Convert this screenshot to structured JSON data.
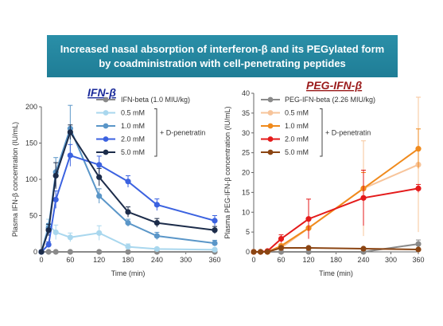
{
  "banner": {
    "line1": "Increased nasal absorption of interferon-β and its PEGylated form",
    "line2": "by coadministration with cell-penetrating peptides"
  },
  "chart_data": [
    {
      "type": "line",
      "title": "IFN-β",
      "title_color": "#1a2a9a",
      "xlabel": "Time (min)",
      "ylabel": "Plasma IFN-β concentration (IU/mL)",
      "xlim": [
        0,
        360
      ],
      "ylim": [
        0,
        200
      ],
      "xticks": [
        0,
        60,
        120,
        180,
        240,
        300,
        360
      ],
      "yticks": [
        0,
        50,
        100,
        150,
        200
      ],
      "x": [
        0,
        15,
        30,
        60,
        120,
        180,
        240,
        360
      ],
      "grid": false,
      "legend_placement": "top-right",
      "bracket_label": "+ D-penetratin",
      "series": [
        {
          "name": "IFN-beta (1.0 MIU/kg)",
          "color": "#8a8a8a",
          "values": [
            0,
            0,
            0,
            0,
            0,
            0,
            0,
            0
          ],
          "errors": [
            0,
            0,
            0,
            0,
            0,
            0,
            0,
            0
          ]
        },
        {
          "name": "0.5 mM",
          "color": "#a9d7ee",
          "values": [
            0,
            37,
            27,
            20,
            26,
            7,
            4,
            3
          ],
          "errors": [
            0,
            8,
            10,
            6,
            10,
            4,
            2,
            2
          ]
        },
        {
          "name": "1.0 mM",
          "color": "#5a96c8",
          "values": [
            0,
            33,
            110,
            170,
            77,
            40,
            22,
            12
          ],
          "errors": [
            0,
            6,
            20,
            32,
            10,
            5,
            5,
            4
          ]
        },
        {
          "name": "2.0 mM",
          "color": "#3b62e0",
          "values": [
            0,
            10,
            72,
            133,
            120,
            97,
            65,
            43
          ],
          "errors": [
            0,
            4,
            12,
            15,
            12,
            8,
            8,
            7
          ]
        },
        {
          "name": "5.0 mM",
          "color": "#1c2c4a",
          "values": [
            0,
            30,
            105,
            165,
            103,
            55,
            40,
            30
          ],
          "errors": [
            0,
            8,
            18,
            10,
            12,
            7,
            6,
            5
          ]
        }
      ]
    },
    {
      "type": "line",
      "title": "PEG-IFN-β",
      "title_color": "#9a1a1a",
      "xlabel": "Time (min)",
      "ylabel": "Plasma PEG-IFN-β concentration (IU/mL)",
      "xlim": [
        0,
        360
      ],
      "ylim": [
        0,
        40
      ],
      "xticks": [
        0,
        60,
        120,
        180,
        240,
        300,
        360
      ],
      "yticks": [
        0,
        5,
        10,
        15,
        20,
        25,
        30,
        35,
        40
      ],
      "x": [
        0,
        15,
        30,
        60,
        120,
        240,
        360
      ],
      "grid": false,
      "legend_placement": "top-right",
      "bracket_label": "+ D-penetratin",
      "series": [
        {
          "name": "PEG-IFN-beta (2.26 MIU/kg)",
          "color": "#8a8a8a",
          "values": [
            0,
            0,
            0,
            0,
            0,
            0,
            2
          ],
          "errors": [
            0,
            0,
            0,
            0,
            0,
            0,
            1
          ]
        },
        {
          "name": "0.5 mM",
          "color": "#f7c49a",
          "values": [
            0,
            0,
            0,
            1,
            6,
            16,
            22
          ],
          "errors": [
            0,
            0,
            0,
            0.5,
            2,
            12,
            17
          ]
        },
        {
          "name": "1.0 mM",
          "color": "#f08a1c",
          "values": [
            0,
            0,
            0,
            1.5,
            6,
            16,
            26
          ],
          "errors": [
            0,
            0,
            0,
            0.5,
            2,
            4,
            5
          ]
        },
        {
          "name": "2.0 mM",
          "color": "#e41a1a",
          "values": [
            0,
            0,
            0.2,
            3.3,
            8.3,
            13.6,
            16
          ],
          "errors": [
            0,
            0,
            0.2,
            1,
            5,
            7,
            1
          ]
        },
        {
          "name": "5.0 mM",
          "color": "#8b4513",
          "values": [
            0,
            0,
            0,
            1,
            1,
            0.8,
            0.6
          ],
          "errors": [
            0,
            0,
            0,
            0.3,
            0.3,
            0.2,
            0.2
          ]
        }
      ]
    }
  ]
}
